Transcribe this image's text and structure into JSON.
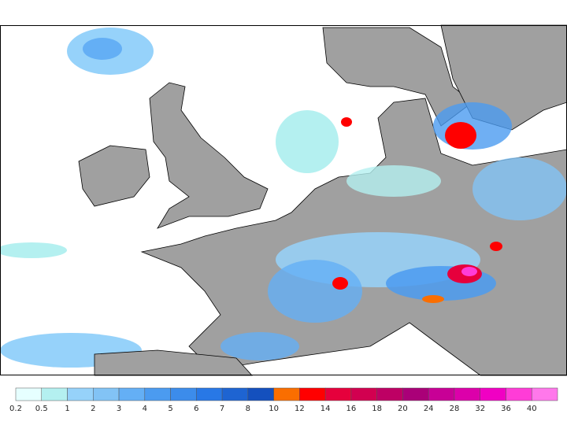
{
  "legend": {
    "labels": [
      "0.2",
      "0.5",
      "1",
      "2",
      "3",
      "4",
      "5",
      "6",
      "7",
      "8",
      "10",
      "12",
      "14",
      "16",
      "18",
      "20",
      "24",
      "28",
      "32",
      "36",
      "40"
    ],
    "colors": [
      "#e6ffff",
      "#b4f0f0",
      "#96d2fa",
      "#82c3f5",
      "#64aff5",
      "#4b9bf0",
      "#3c8ceb",
      "#2878e6",
      "#1e64d2",
      "#1450be",
      "#fa6e00",
      "#ff0000",
      "#e6003c",
      "#d20050",
      "#be0064",
      "#aa0078",
      "#c80096",
      "#dc00aa",
      "#f000c3",
      "#ff3cd7",
      "#ff78eb"
    ]
  }
}
